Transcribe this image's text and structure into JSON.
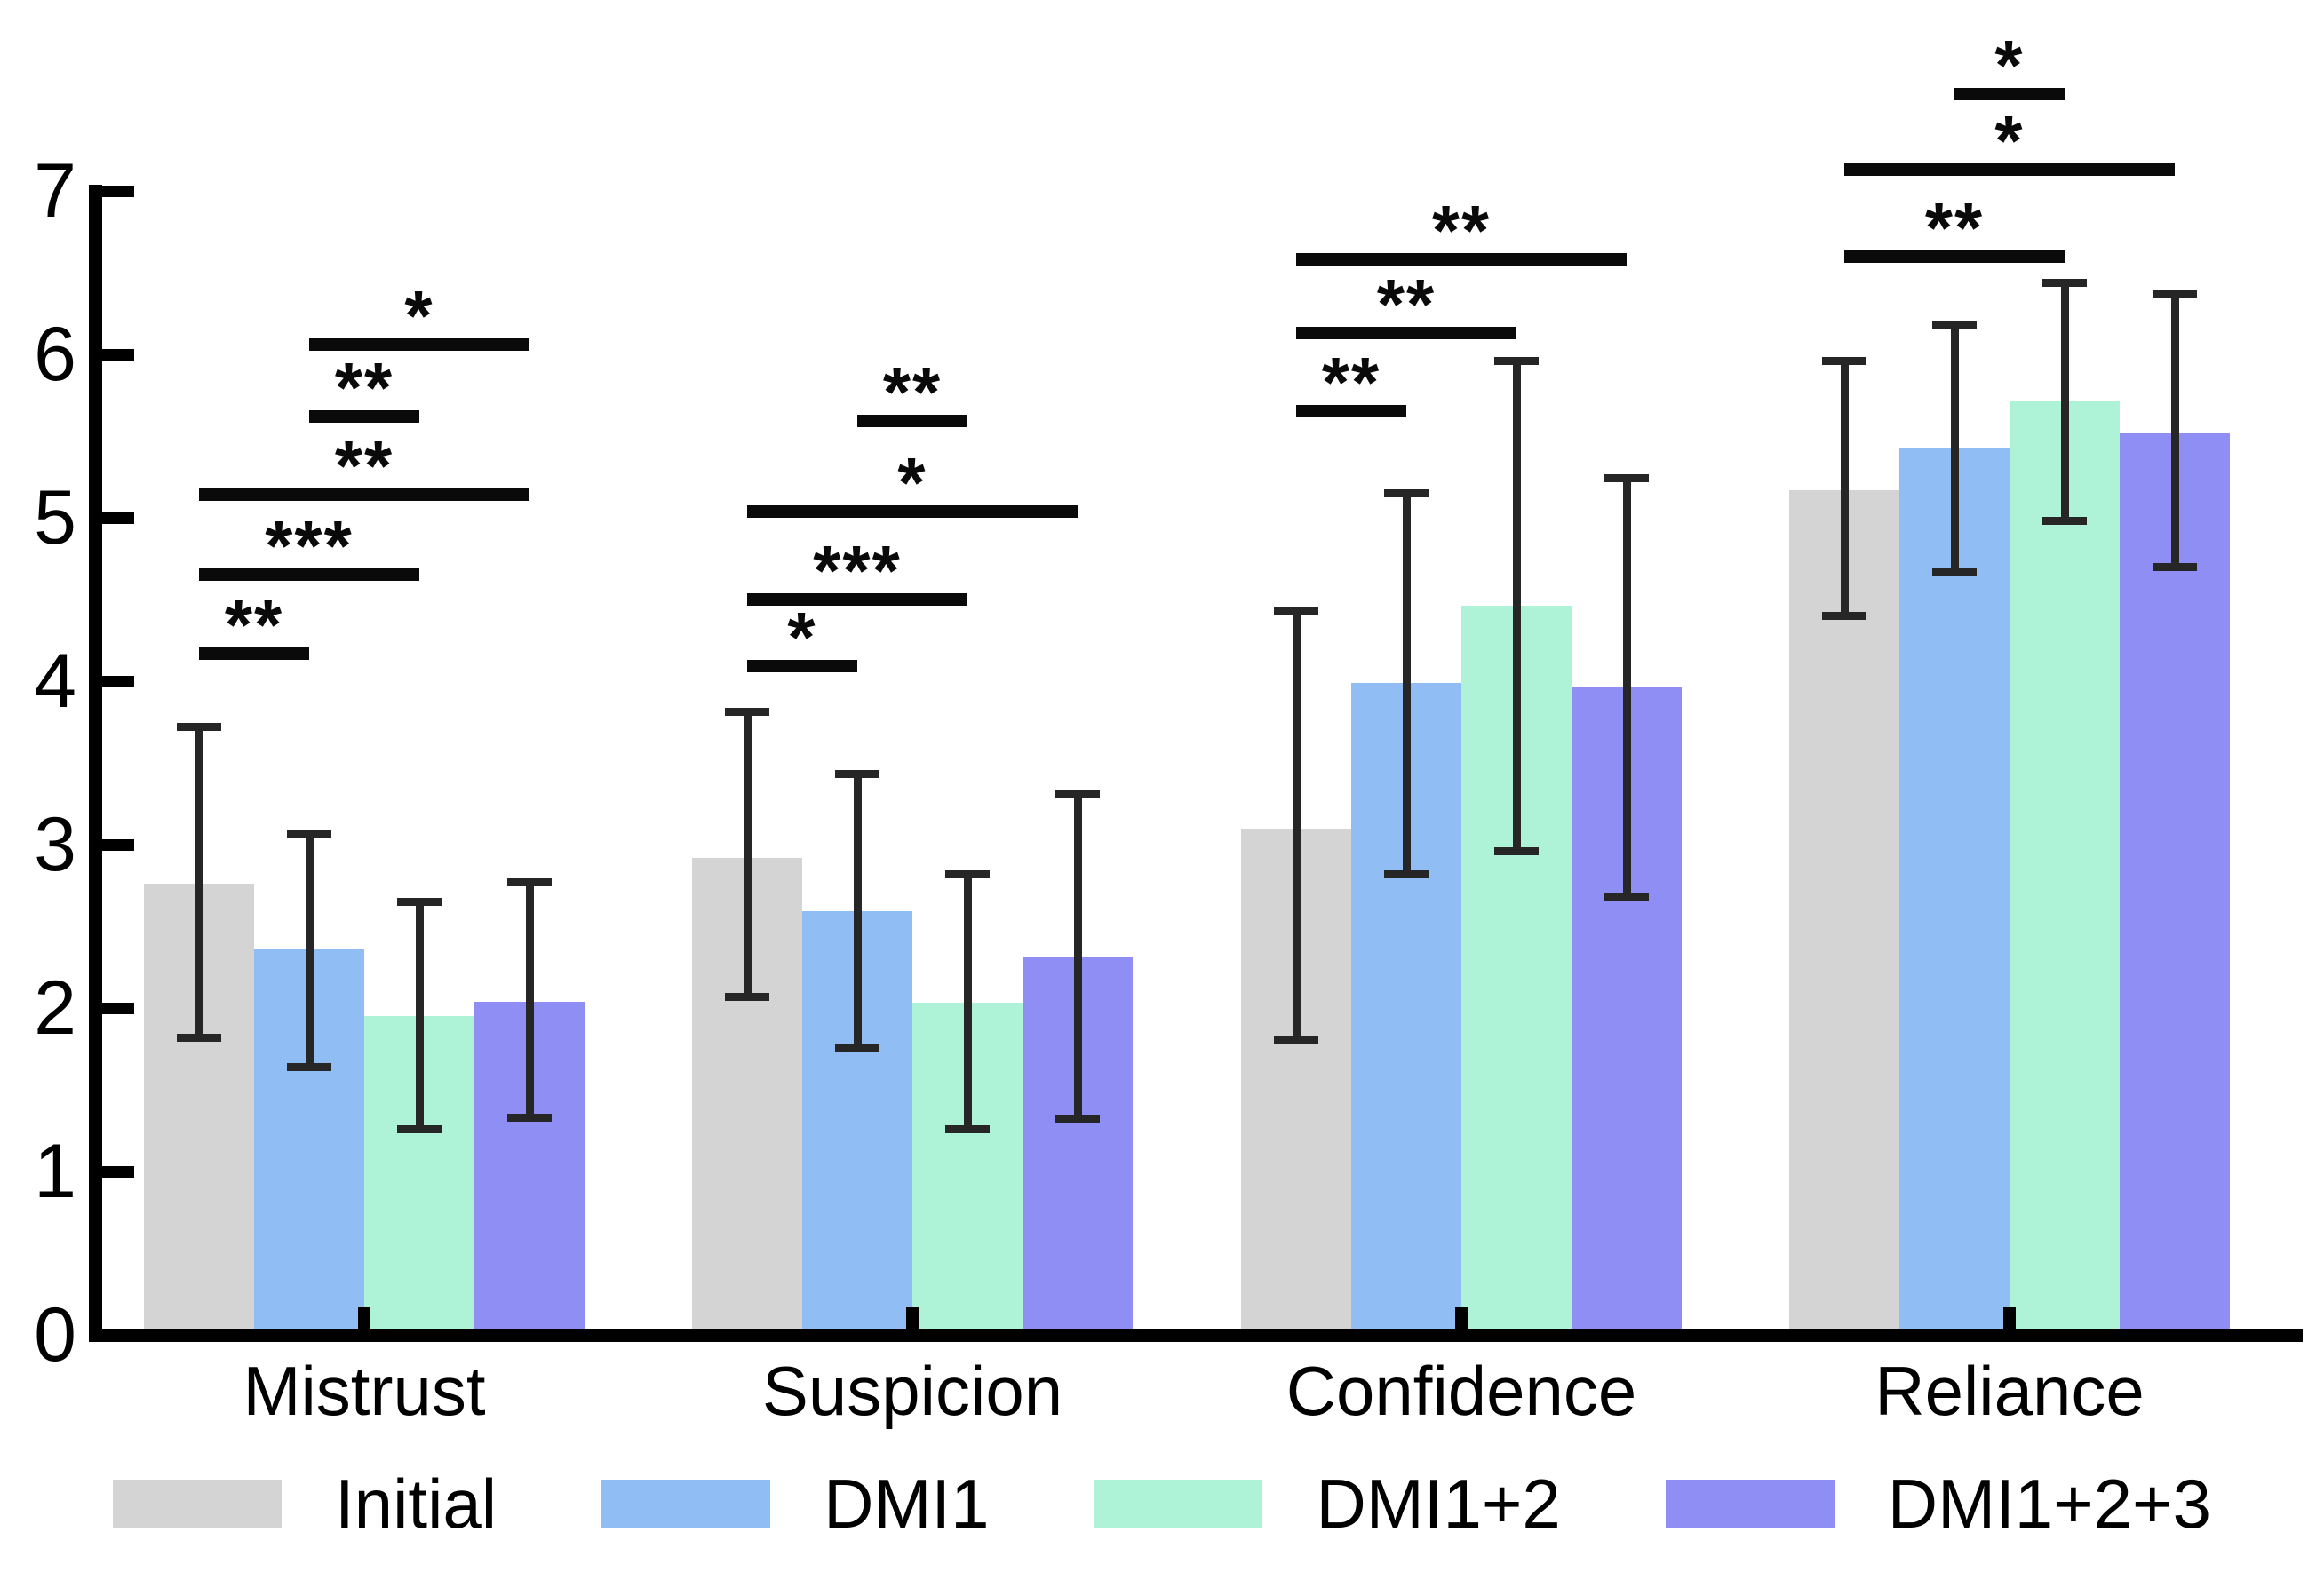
{
  "chart_data": {
    "type": "bar",
    "title": "",
    "xlabel": "",
    "ylabel": "",
    "categories": [
      "Mistrust",
      "Suspicion",
      "Confidence",
      "Reliance"
    ],
    "yticks": [
      0,
      1,
      2,
      3,
      4,
      5,
      6,
      7
    ],
    "ylim": [
      0,
      7
    ],
    "grid": false,
    "legend_position": "bottom",
    "bar_color_note": "pastel fills, dark error bars",
    "series": [
      {
        "name": "Initial",
        "color": "#d4d4d4",
        "values": [
          2.76,
          2.92,
          3.1,
          5.17
        ],
        "err_low": [
          1.82,
          2.07,
          1.8,
          4.4
        ],
        "err_high": [
          3.72,
          3.81,
          4.43,
          5.96
        ]
      },
      {
        "name": "DMI1",
        "color": "#8fbdf4",
        "values": [
          2.36,
          2.59,
          3.99,
          5.43
        ],
        "err_low": [
          1.64,
          1.76,
          2.82,
          4.67
        ],
        "err_high": [
          3.07,
          3.43,
          5.15,
          6.18
        ]
      },
      {
        "name": "DMI1+2",
        "color": "#aef2d8",
        "values": [
          1.95,
          2.03,
          4.46,
          5.71
        ],
        "err_low": [
          1.26,
          1.26,
          2.96,
          4.98
        ],
        "err_high": [
          2.65,
          2.82,
          5.96,
          6.44
        ]
      },
      {
        "name": "DMI1+2+3",
        "color": "#8e8ef5",
        "values": [
          2.04,
          2.31,
          3.96,
          5.52
        ],
        "err_low": [
          1.33,
          1.32,
          2.68,
          4.7
        ],
        "err_high": [
          2.77,
          3.31,
          5.24,
          6.37
        ]
      }
    ],
    "significance_brackets": [
      {
        "category": "Mistrust",
        "between": [
          "Initial",
          "DMI1"
        ],
        "label": "**",
        "y": 4.17
      },
      {
        "category": "Mistrust",
        "between": [
          "Initial",
          "DMI1+2"
        ],
        "label": "***",
        "y": 4.65
      },
      {
        "category": "Mistrust",
        "between": [
          "Initial",
          "DMI1+2+3"
        ],
        "label": "**",
        "y": 5.14
      },
      {
        "category": "Mistrust",
        "between": [
          "DMI1",
          "DMI1+2"
        ],
        "label": "**",
        "y": 5.62
      },
      {
        "category": "Mistrust",
        "between": [
          "DMI1",
          "DMI1+2+3"
        ],
        "label": "*",
        "y": 6.06
      },
      {
        "category": "Suspicion",
        "between": [
          "Initial",
          "DMI1"
        ],
        "label": "*",
        "y": 4.09
      },
      {
        "category": "Suspicion",
        "between": [
          "Initial",
          "DMI1+2"
        ],
        "label": "***",
        "y": 4.5
      },
      {
        "category": "Suspicion",
        "between": [
          "Initial",
          "DMI1+2+3"
        ],
        "label": "*",
        "y": 5.04
      },
      {
        "category": "Suspicion",
        "between": [
          "DMI1",
          "DMI1+2"
        ],
        "label": "**",
        "y": 5.59
      },
      {
        "category": "Confidence",
        "between": [
          "Initial",
          "DMI1"
        ],
        "label": "**",
        "y": 5.65
      },
      {
        "category": "Confidence",
        "between": [
          "Initial",
          "DMI1+2"
        ],
        "label": "**",
        "y": 6.13
      },
      {
        "category": "Confidence",
        "between": [
          "Initial",
          "DMI1+2+3"
        ],
        "label": "**",
        "y": 6.58
      },
      {
        "category": "Reliance",
        "between": [
          "Initial",
          "DMI1+2"
        ],
        "label": "**",
        "y": 6.6
      },
      {
        "category": "Reliance",
        "between": [
          "Initial",
          "DMI1+2+3"
        ],
        "label": "*",
        "y": 7.13
      },
      {
        "category": "Reliance",
        "between": [
          "DMI1",
          "DMI1+2"
        ],
        "label": "*",
        "y": 7.59
      }
    ]
  }
}
